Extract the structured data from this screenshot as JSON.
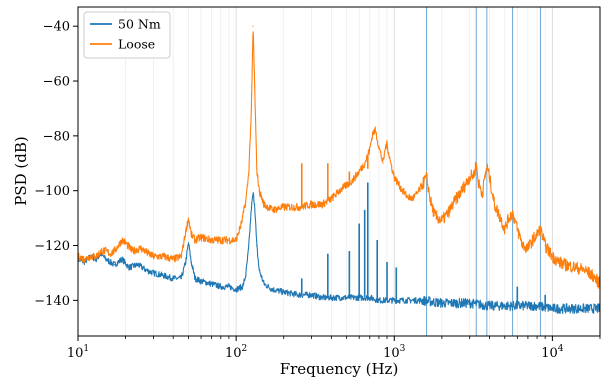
{
  "chart_data": {
    "type": "line",
    "title": "",
    "xlabel": "Frequency (Hz)",
    "ylabel": "PSD (dB)",
    "xscale": "log",
    "xlim": [
      10,
      20000
    ],
    "ylim": [
      -153,
      -33
    ],
    "grid": "log-minor vertical",
    "legend_position": "top-left",
    "x_ticks": [
      {
        "value": 10,
        "mantissa": "10",
        "exp": "1"
      },
      {
        "value": 100,
        "mantissa": "10",
        "exp": "2"
      },
      {
        "value": 1000,
        "mantissa": "10",
        "exp": "3"
      },
      {
        "value": 10000,
        "mantissa": "10",
        "exp": "4"
      }
    ],
    "y_ticks": [
      {
        "value": -40,
        "label": "−40"
      },
      {
        "value": -60,
        "label": "−60"
      },
      {
        "value": -80,
        "label": "−80"
      },
      {
        "value": -100,
        "label": "−100"
      },
      {
        "value": -120,
        "label": "−120"
      },
      {
        "value": -140,
        "label": "−140"
      }
    ],
    "vertical_markers_hz": [
      1600,
      3300,
      3850,
      5600,
      8400
    ],
    "series": [
      {
        "name": "50 Nm",
        "color": "#1f77b4",
        "points": [
          [
            10,
            -125
          ],
          [
            11,
            -126
          ],
          [
            12,
            -124
          ],
          [
            13,
            -125
          ],
          [
            14,
            -123
          ],
          [
            15,
            -125
          ],
          [
            17,
            -127
          ],
          [
            19,
            -125
          ],
          [
            21,
            -128
          ],
          [
            24,
            -127
          ],
          [
            27,
            -129
          ],
          [
            30,
            -130
          ],
          [
            35,
            -131
          ],
          [
            40,
            -132
          ],
          [
            45,
            -132
          ],
          [
            48,
            -126
          ],
          [
            50,
            -119
          ],
          [
            52,
            -126
          ],
          [
            55,
            -132
          ],
          [
            60,
            -133
          ],
          [
            70,
            -134
          ],
          [
            80,
            -135
          ],
          [
            90,
            -135
          ],
          [
            100,
            -136
          ],
          [
            110,
            -135
          ],
          [
            115,
            -131
          ],
          [
            120,
            -121
          ],
          [
            125,
            -106
          ],
          [
            128,
            -101
          ],
          [
            131,
            -105
          ],
          [
            135,
            -120
          ],
          [
            140,
            -129
          ],
          [
            150,
            -134
          ],
          [
            170,
            -136
          ],
          [
            200,
            -137
          ],
          [
            250,
            -138
          ],
          [
            300,
            -138
          ],
          [
            350,
            -139
          ],
          [
            400,
            -139
          ],
          [
            500,
            -139
          ],
          [
            600,
            -139
          ],
          [
            700,
            -139
          ],
          [
            800,
            -140
          ],
          [
            900,
            -140
          ],
          [
            1000,
            -140
          ],
          [
            1200,
            -140
          ],
          [
            1500,
            -140
          ],
          [
            2000,
            -141
          ],
          [
            2500,
            -141
          ],
          [
            3000,
            -141
          ],
          [
            4000,
            -142
          ],
          [
            5000,
            -142
          ],
          [
            6000,
            -142
          ],
          [
            7000,
            -142
          ],
          [
            8000,
            -142
          ],
          [
            10000,
            -143
          ],
          [
            12000,
            -143
          ],
          [
            15000,
            -143
          ],
          [
            20000,
            -143
          ]
        ]
      },
      {
        "name": "Loose",
        "color": "#ff7f0e",
        "points": [
          [
            10,
            -124
          ],
          [
            11,
            -125
          ],
          [
            12,
            -124
          ],
          [
            13,
            -124
          ],
          [
            14,
            -122
          ],
          [
            15,
            -122
          ],
          [
            16,
            -123
          ],
          [
            17,
            -122
          ],
          [
            18,
            -120
          ],
          [
            19,
            -118
          ],
          [
            20,
            -119
          ],
          [
            22,
            -122
          ],
          [
            25,
            -121
          ],
          [
            28,
            -123
          ],
          [
            30,
            -124
          ],
          [
            35,
            -124
          ],
          [
            40,
            -125
          ],
          [
            45,
            -124
          ],
          [
            48,
            -115
          ],
          [
            50,
            -110
          ],
          [
            52,
            -116
          ],
          [
            55,
            -118
          ],
          [
            60,
            -117
          ],
          [
            70,
            -118
          ],
          [
            80,
            -118
          ],
          [
            90,
            -118
          ],
          [
            100,
            -118
          ],
          [
            108,
            -112
          ],
          [
            115,
            -104
          ],
          [
            120,
            -94
          ],
          [
            125,
            -70
          ],
          [
            128,
            -40
          ],
          [
            131,
            -62
          ],
          [
            135,
            -92
          ],
          [
            140,
            -100
          ],
          [
            150,
            -105
          ],
          [
            170,
            -107
          ],
          [
            200,
            -106
          ],
          [
            250,
            -106
          ],
          [
            300,
            -105
          ],
          [
            350,
            -105
          ],
          [
            400,
            -103
          ],
          [
            450,
            -100
          ],
          [
            500,
            -98
          ],
          [
            550,
            -96
          ],
          [
            600,
            -93
          ],
          [
            650,
            -90
          ],
          [
            700,
            -85
          ],
          [
            730,
            -79
          ],
          [
            760,
            -78
          ],
          [
            800,
            -84
          ],
          [
            850,
            -90
          ],
          [
            880,
            -84
          ],
          [
            900,
            -83
          ],
          [
            950,
            -90
          ],
          [
            1000,
            -95
          ],
          [
            1100,
            -99
          ],
          [
            1200,
            -102
          ],
          [
            1300,
            -103
          ],
          [
            1400,
            -101
          ],
          [
            1500,
            -98
          ],
          [
            1600,
            -95
          ],
          [
            1700,
            -104
          ],
          [
            1800,
            -109
          ],
          [
            2000,
            -111
          ],
          [
            2200,
            -108
          ],
          [
            2400,
            -104
          ],
          [
            2600,
            -101
          ],
          [
            2800,
            -98
          ],
          [
            3000,
            -95
          ],
          [
            3200,
            -94
          ],
          [
            3300,
            -90
          ],
          [
            3400,
            -97
          ],
          [
            3600,
            -101
          ],
          [
            3850,
            -91
          ],
          [
            4000,
            -95
          ],
          [
            4300,
            -105
          ],
          [
            4700,
            -110
          ],
          [
            5000,
            -114
          ],
          [
            5300,
            -110
          ],
          [
            5600,
            -108
          ],
          [
            6000,
            -114
          ],
          [
            6500,
            -120
          ],
          [
            7000,
            -121
          ],
          [
            7500,
            -118
          ],
          [
            8000,
            -116
          ],
          [
            8400,
            -114
          ],
          [
            9000,
            -120
          ],
          [
            10000,
            -124
          ],
          [
            11000,
            -126
          ],
          [
            12000,
            -127
          ],
          [
            14000,
            -128
          ],
          [
            16000,
            -129
          ],
          [
            18000,
            -131
          ],
          [
            20000,
            -134
          ]
        ]
      }
    ],
    "spikes_50nm": [
      {
        "x": 260,
        "y": -132
      },
      {
        "x": 380,
        "y": -123
      },
      {
        "x": 520,
        "y": -122
      },
      {
        "x": 600,
        "y": -112
      },
      {
        "x": 650,
        "y": -107
      },
      {
        "x": 680,
        "y": -97
      },
      {
        "x": 780,
        "y": -118
      },
      {
        "x": 900,
        "y": -126
      },
      {
        "x": 1030,
        "y": -128
      },
      {
        "x": 6000,
        "y": -135
      },
      {
        "x": 9000,
        "y": -138
      }
    ],
    "spikes_loose": [
      {
        "x": 260,
        "y": -90
      },
      {
        "x": 380,
        "y": -90
      },
      {
        "x": 520,
        "y": -93
      },
      {
        "x": 680,
        "y": -92
      }
    ]
  }
}
